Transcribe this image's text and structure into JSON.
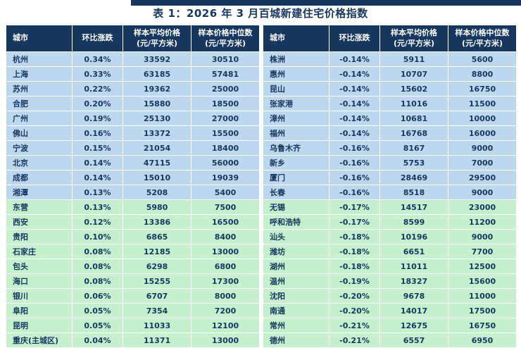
{
  "title": "表 1：2026 年 3 月百城新建住宅价格指数",
  "columns": {
    "city": "城市",
    "change": "环比涨跌",
    "avg_line1": "样本平均价格",
    "avg_line2": "(元/平方米)",
    "median_line1": "样本价格中位数",
    "median_line2": "(元/平方米)"
  },
  "colors": {
    "header_bg": "#17375e",
    "header_text": "#ffffff",
    "row_blue": "#bdd7ee",
    "row_green": "#c6efce",
    "text_navy": "#17375e",
    "top_bar": "#17375e"
  },
  "tables": {
    "left": {
      "rows": [
        {
          "city": "杭州",
          "change": "0.34%",
          "avg": "33592",
          "median": "30510",
          "group": "blue"
        },
        {
          "city": "上海",
          "change": "0.33%",
          "avg": "63185",
          "median": "57481",
          "group": "blue"
        },
        {
          "city": "苏州",
          "change": "0.22%",
          "avg": "19362",
          "median": "25000",
          "group": "blue"
        },
        {
          "city": "合肥",
          "change": "0.20%",
          "avg": "15880",
          "median": "18500",
          "group": "blue"
        },
        {
          "city": "广州",
          "change": "0.19%",
          "avg": "25130",
          "median": "27000",
          "group": "blue"
        },
        {
          "city": "佛山",
          "change": "0.16%",
          "avg": "13372",
          "median": "15500",
          "group": "blue"
        },
        {
          "city": "宁波",
          "change": "0.15%",
          "avg": "21054",
          "median": "18400",
          "group": "blue"
        },
        {
          "city": "北京",
          "change": "0.14%",
          "avg": "47115",
          "median": "56000",
          "group": "blue"
        },
        {
          "city": "成都",
          "change": "0.14%",
          "avg": "15010",
          "median": "19039",
          "group": "blue"
        },
        {
          "city": "湘潭",
          "change": "0.13%",
          "avg": "5208",
          "median": "5400",
          "group": "blue"
        },
        {
          "city": "东营",
          "change": "0.13%",
          "avg": "5980",
          "median": "7500",
          "group": "green"
        },
        {
          "city": "西安",
          "change": "0.12%",
          "avg": "13386",
          "median": "16500",
          "group": "green"
        },
        {
          "city": "贵阳",
          "change": "0.10%",
          "avg": "6865",
          "median": "8400",
          "group": "green"
        },
        {
          "city": "石家庄",
          "change": "0.08%",
          "avg": "12185",
          "median": "13000",
          "group": "green"
        },
        {
          "city": "包头",
          "change": "0.08%",
          "avg": "6298",
          "median": "6800",
          "group": "green"
        },
        {
          "city": "海口",
          "change": "0.08%",
          "avg": "15255",
          "median": "17300",
          "group": "green"
        },
        {
          "city": "银川",
          "change": "0.06%",
          "avg": "6707",
          "median": "8000",
          "group": "green"
        },
        {
          "city": "阜阳",
          "change": "0.05%",
          "avg": "7354",
          "median": "7200",
          "group": "green"
        },
        {
          "city": "昆明",
          "change": "0.05%",
          "avg": "11033",
          "median": "12100",
          "group": "green"
        },
        {
          "city": "重庆(主城区)",
          "change": "0.04%",
          "avg": "11371",
          "median": "13000",
          "group": "green"
        }
      ]
    },
    "right": {
      "rows": [
        {
          "city": "株洲",
          "change": "-0.14%",
          "avg": "5911",
          "median": "5600",
          "group": "blue"
        },
        {
          "city": "惠州",
          "change": "-0.14%",
          "avg": "10707",
          "median": "8800",
          "group": "blue"
        },
        {
          "city": "昆山",
          "change": "-0.14%",
          "avg": "15602",
          "median": "16750",
          "group": "blue"
        },
        {
          "city": "张家港",
          "change": "-0.14%",
          "avg": "11016",
          "median": "11500",
          "group": "blue"
        },
        {
          "city": "漳州",
          "change": "-0.14%",
          "avg": "10681",
          "median": "10000",
          "group": "blue"
        },
        {
          "city": "福州",
          "change": "-0.14%",
          "avg": "16768",
          "median": "16000",
          "group": "blue"
        },
        {
          "city": "乌鲁木齐",
          "change": "-0.16%",
          "avg": "8167",
          "median": "9000",
          "group": "blue"
        },
        {
          "city": "新乡",
          "change": "-0.16%",
          "avg": "5753",
          "median": "7000",
          "group": "blue"
        },
        {
          "city": "厦门",
          "change": "-0.16%",
          "avg": "28469",
          "median": "29500",
          "group": "blue"
        },
        {
          "city": "长春",
          "change": "-0.16%",
          "avg": "8518",
          "median": "9000",
          "group": "blue"
        },
        {
          "city": "无锡",
          "change": "-0.17%",
          "avg": "14517",
          "median": "23000",
          "group": "green"
        },
        {
          "city": "呼和浩特",
          "change": "-0.17%",
          "avg": "8599",
          "median": "11200",
          "group": "green"
        },
        {
          "city": "汕头",
          "change": "-0.18%",
          "avg": "10196",
          "median": "9000",
          "group": "green"
        },
        {
          "city": "潍坊",
          "change": "-0.18%",
          "avg": "6651",
          "median": "7700",
          "group": "green"
        },
        {
          "city": "湖州",
          "change": "-0.18%",
          "avg": "11011",
          "median": "12500",
          "group": "green"
        },
        {
          "city": "温州",
          "change": "-0.19%",
          "avg": "18327",
          "median": "15600",
          "group": "green"
        },
        {
          "city": "沈阳",
          "change": "-0.20%",
          "avg": "9678",
          "median": "11000",
          "group": "green"
        },
        {
          "city": "南通",
          "change": "-0.20%",
          "avg": "14017",
          "median": "17500",
          "group": "green"
        },
        {
          "city": "常州",
          "change": "-0.21%",
          "avg": "12675",
          "median": "16750",
          "group": "green"
        },
        {
          "city": "德州",
          "change": "-0.21%",
          "avg": "6557",
          "median": "6950",
          "group": "green"
        }
      ]
    }
  }
}
